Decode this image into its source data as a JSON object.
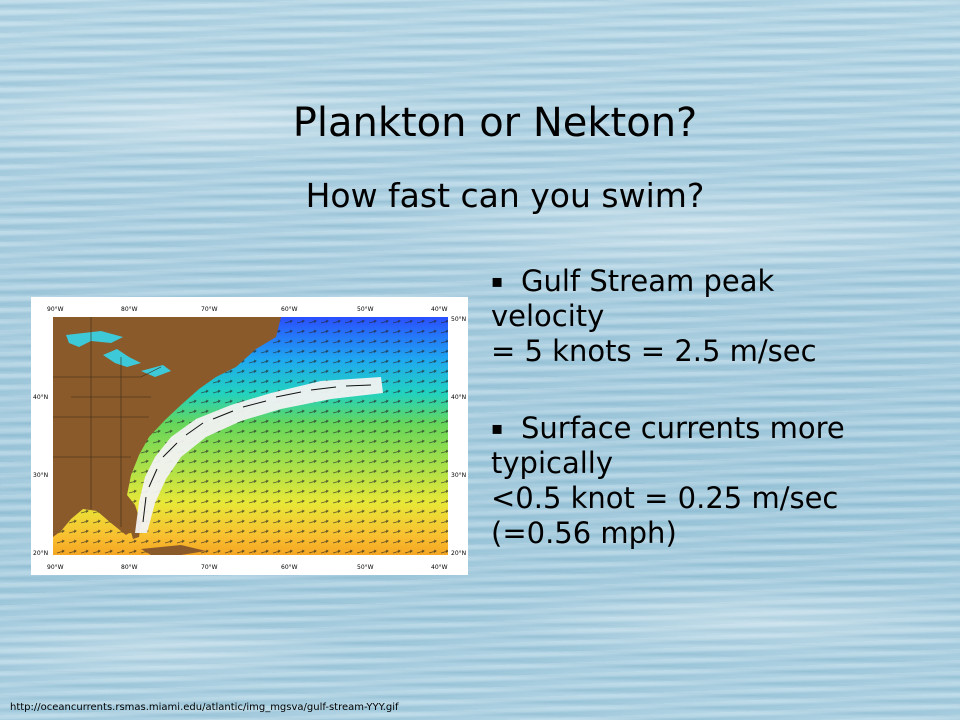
{
  "slide": {
    "title": "Plankton or Nekton?",
    "subtitle": "How fast can you swim?"
  },
  "bullets": [
    {
      "lines": [
        "Gulf Stream peak",
        "velocity",
        "= 5 knots = 2.5 m/sec"
      ]
    },
    {
      "lines": [
        "Surface currents more",
        "typically",
        "<0.5 knot = 0.25 m/sec",
        "(=0.56 mph)"
      ]
    }
  ],
  "bullet_symbol": "▪",
  "map": {
    "lon_labels": [
      "90°W",
      "80°W",
      "70°W",
      "60°W",
      "50°W",
      "40°W"
    ],
    "lat_labels": [
      "50°N",
      "40°N",
      "30°N",
      "20°N"
    ],
    "colors": {
      "land": "#8b5a2b",
      "current_core": "#f2f2f2",
      "cold": "#1e5aff",
      "warm": "#f5a623"
    }
  },
  "source_url": "http://oceancurrents.rsmas.miami.edu/atlantic/img_mgsva/gulf-stream-YYY.gif"
}
